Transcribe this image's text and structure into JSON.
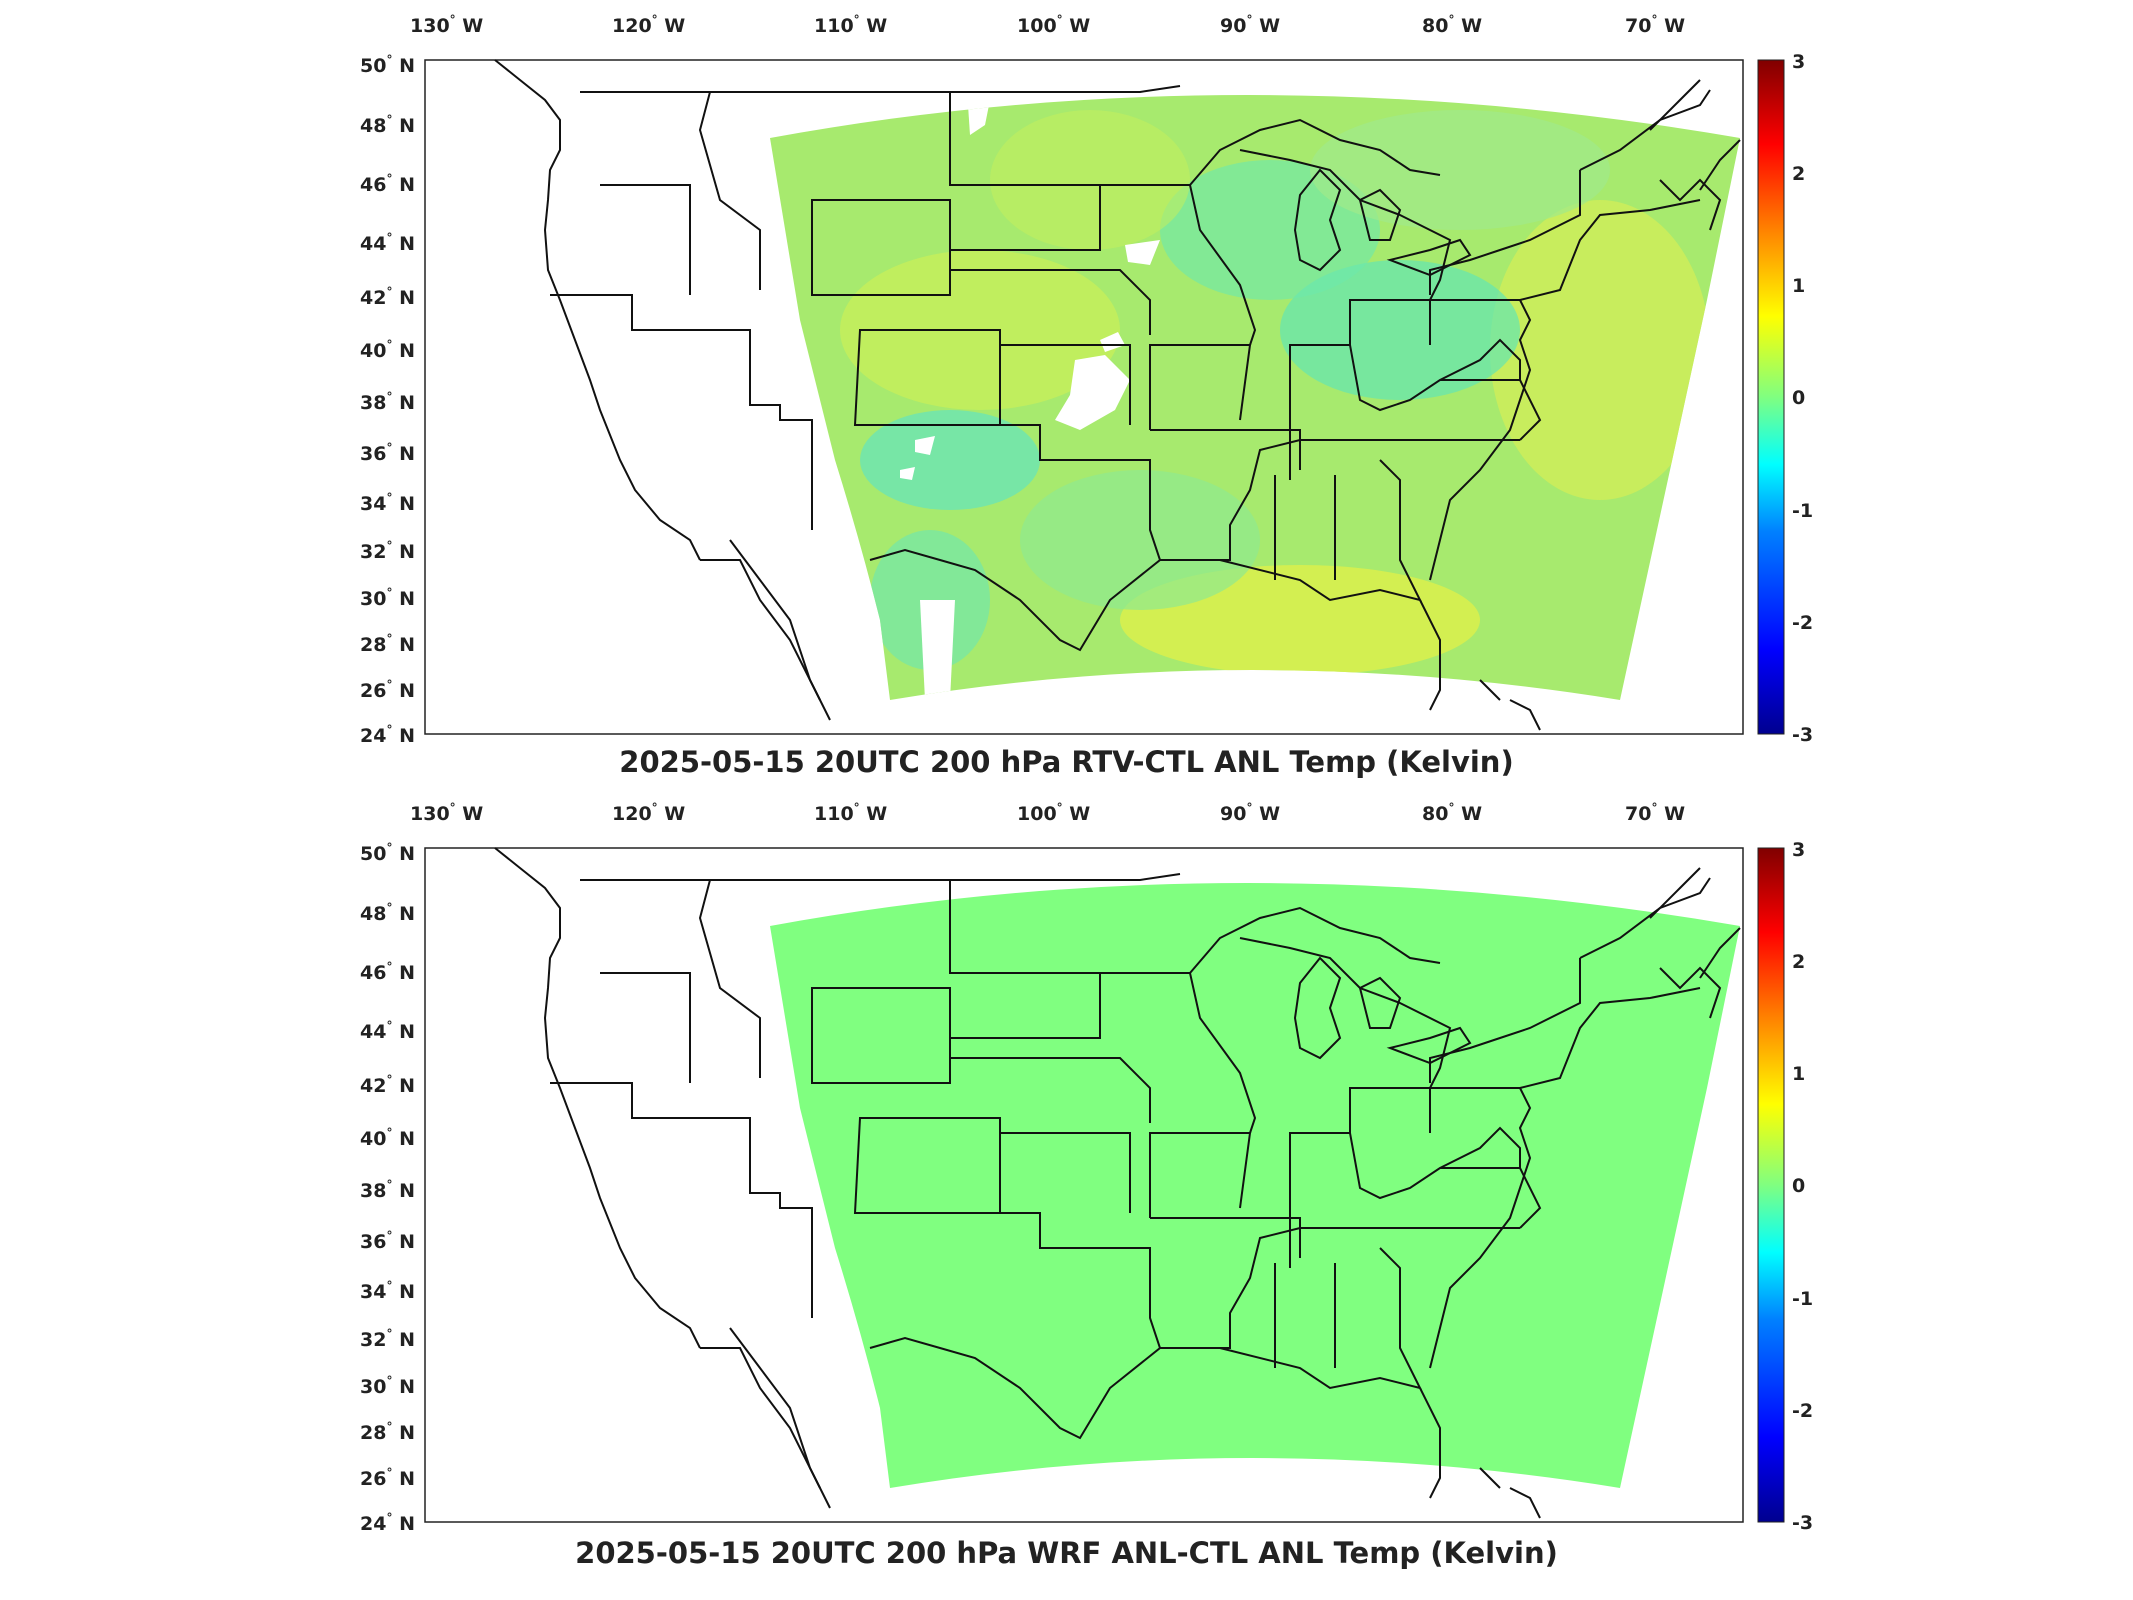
{
  "colorbar": {
    "ticks": [
      "3",
      "2",
      "1",
      "0",
      "-1",
      "-2",
      "-3"
    ],
    "range": [
      -3,
      3
    ],
    "colormap": "jet",
    "colors": [
      "#00008f",
      "#0000ff",
      "#0080ff",
      "#00ffff",
      "#80ff80",
      "#ffff00",
      "#ff8000",
      "#ff0000",
      "#800000"
    ]
  },
  "lon_ticks": [
    {
      "deg": "130",
      "hemi": "W"
    },
    {
      "deg": "120",
      "hemi": "W"
    },
    {
      "deg": "110",
      "hemi": "W"
    },
    {
      "deg": "100",
      "hemi": "W"
    },
    {
      "deg": "90",
      "hemi": "W"
    },
    {
      "deg": "80",
      "hemi": "W"
    },
    {
      "deg": "70",
      "hemi": "W"
    }
  ],
  "lat_ticks": [
    {
      "deg": "50",
      "hemi": "N"
    },
    {
      "deg": "48",
      "hemi": "N"
    },
    {
      "deg": "46",
      "hemi": "N"
    },
    {
      "deg": "44",
      "hemi": "N"
    },
    {
      "deg": "42",
      "hemi": "N"
    },
    {
      "deg": "40",
      "hemi": "N"
    },
    {
      "deg": "38",
      "hemi": "N"
    },
    {
      "deg": "36",
      "hemi": "N"
    },
    {
      "deg": "34",
      "hemi": "N"
    },
    {
      "deg": "32",
      "hemi": "N"
    },
    {
      "deg": "30",
      "hemi": "N"
    },
    {
      "deg": "28",
      "hemi": "N"
    },
    {
      "deg": "26",
      "hemi": "N"
    },
    {
      "deg": "24",
      "hemi": "N"
    }
  ],
  "panels": [
    {
      "title": "2025-05-15 20UTC 200 hPa RTV-CTL ANL Temp (Kelvin)",
      "field": "mixed",
      "domain_base_color": "#9ef07a",
      "field_value_range": [
        -0.7,
        0.8
      ],
      "missing_data_patches": true
    },
    {
      "title": "2025-05-15 20UTC 200 hPa WRF ANL-CTL ANL Temp (Kelvin)",
      "field": "uniform",
      "domain_base_color": "#80ff80",
      "field_value": 0
    }
  ]
}
